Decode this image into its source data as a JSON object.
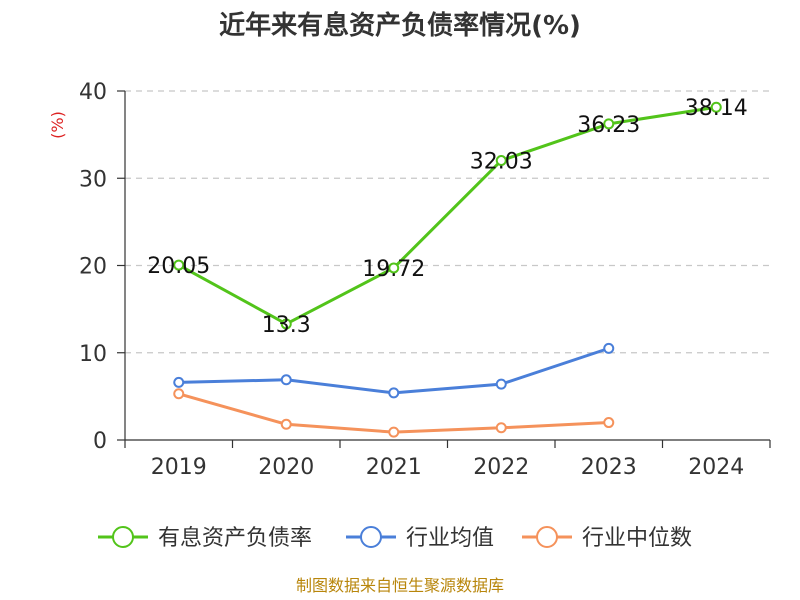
{
  "chart_data": {
    "type": "line",
    "title": "近年来有息资产负债率情况(%)",
    "ylabel": "(%)",
    "ylim": [
      0,
      40
    ],
    "yticks": [
      0,
      10,
      20,
      30,
      40
    ],
    "categories": [
      "2019",
      "2020",
      "2021",
      "2022",
      "2023",
      "2024"
    ],
    "grid": true,
    "legend_position": "bottom",
    "series": [
      {
        "name": "有息资产负债率",
        "color": "#52c41a",
        "values": [
          20.05,
          13.3,
          19.72,
          32.03,
          36.23,
          38.14
        ],
        "labels": [
          "20.05",
          "13.3",
          "19.72",
          "32.03",
          "36.23",
          "38.14"
        ]
      },
      {
        "name": "行业均值",
        "color": "#4a7fd9",
        "values": [
          6.6,
          6.9,
          5.4,
          6.4,
          10.5,
          null
        ]
      },
      {
        "name": "行业中位数",
        "color": "#f5925b",
        "values": [
          5.3,
          1.8,
          0.9,
          1.4,
          2.0,
          null
        ]
      }
    ],
    "source": "制图数据来自恒生聚源数据库"
  }
}
